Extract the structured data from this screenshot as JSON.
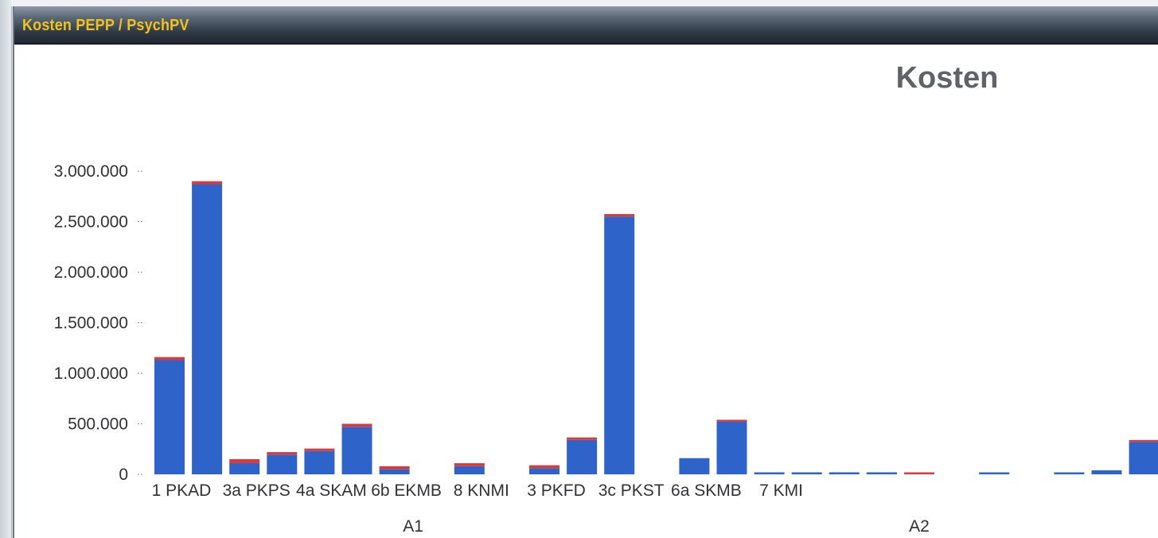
{
  "window": {
    "title": "Kosten PEPP / PsychPV"
  },
  "colors": {
    "blue": "#2e63c9",
    "red": "#d83b3b",
    "title_gold": "#f2c21a"
  },
  "chart_data": {
    "type": "bar",
    "stacked": true,
    "title": "Kosten",
    "xlabel": "",
    "ylabel": "",
    "ylim": [
      0,
      3000000
    ],
    "yticks": [
      "0",
      "500.000",
      "1.000.000",
      "1.500.000",
      "2.000.000",
      "2.500.000",
      "3.000.000"
    ],
    "grid": false,
    "category_labels": [
      "1 PKAD",
      "3a PKPS",
      "4a SKAM",
      "6b EKMB",
      "8 KNMI",
      "3 PKFD",
      "3c PKST",
      "6a SKMB",
      "7 KMI"
    ],
    "groups": [
      {
        "label": "A1"
      },
      {
        "label": "A2"
      }
    ],
    "series": [
      {
        "color": "blue",
        "values": [
          1130000,
          2870000,
          110000,
          195000,
          230000,
          470000,
          50000,
          0,
          80000,
          0,
          60000,
          340000,
          2550000,
          0,
          160000,
          520000,
          10000,
          10000,
          20000,
          20000,
          0,
          0,
          10000,
          0,
          10000,
          40000,
          320000
        ]
      },
      {
        "color": "red",
        "values": [
          30000,
          30000,
          40000,
          25000,
          25000,
          30000,
          30000,
          0,
          30000,
          0,
          30000,
          25000,
          25000,
          0,
          0,
          15000,
          0,
          0,
          0,
          0,
          15000,
          0,
          0,
          0,
          0,
          0,
          15000
        ]
      }
    ]
  }
}
